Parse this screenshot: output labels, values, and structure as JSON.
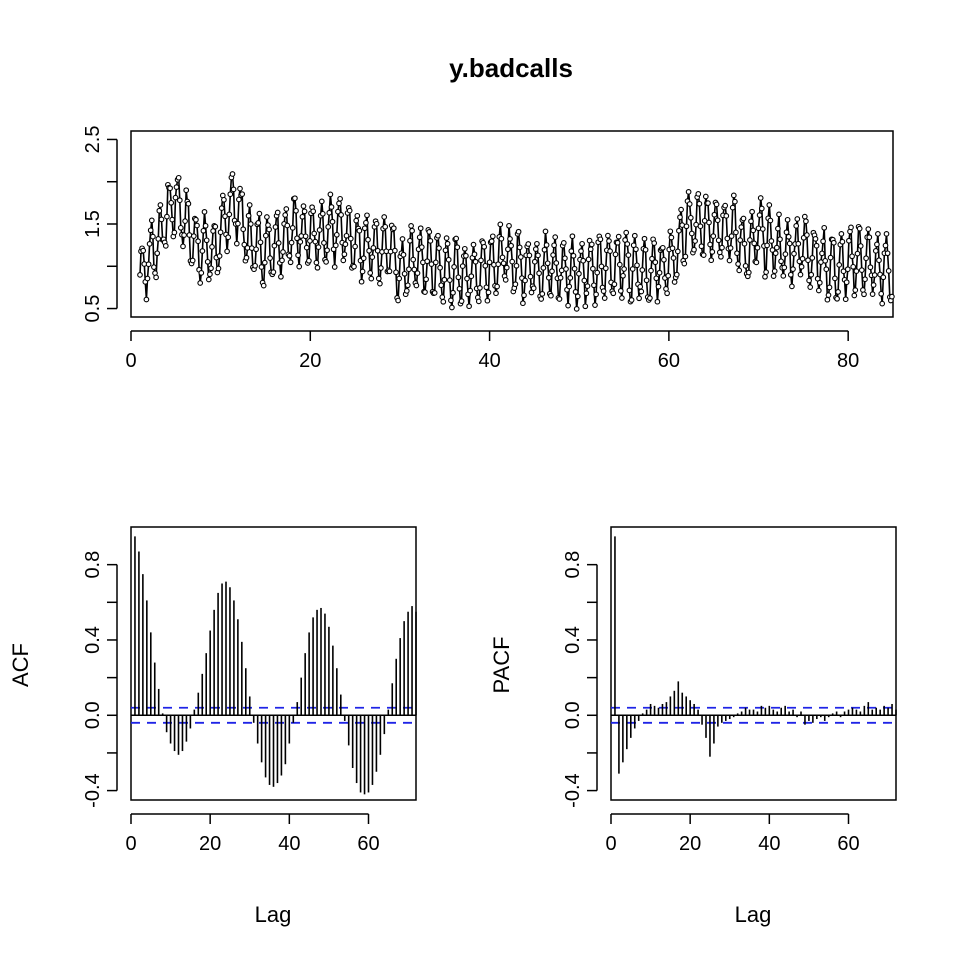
{
  "chart_data": [
    {
      "type": "line",
      "title": "y.badcalls",
      "xlabel": "",
      "ylabel": "",
      "xlim": [
        0,
        85
      ],
      "ylim": [
        0.4,
        2.6
      ],
      "x_ticks": [
        0,
        20,
        40,
        60,
        80
      ],
      "x_tick_labels": [
        "0",
        "20",
        "40",
        "60",
        "80"
      ],
      "y_ticks": [
        0.5,
        1.0,
        1.5,
        2.0,
        2.5
      ],
      "y_tick_labels": [
        "0.5",
        "",
        "1.5",
        "",
        "2.5"
      ],
      "markers": "open-circle",
      "level_profile": {
        "x": [
          1,
          3,
          4,
          5,
          7,
          9,
          10,
          11,
          12,
          13,
          15,
          17,
          19,
          21,
          23,
          25,
          27,
          29,
          30,
          32,
          35,
          38,
          40,
          42,
          44,
          46,
          48,
          50,
          52,
          54,
          56,
          58,
          60,
          61,
          62,
          63,
          65,
          67,
          68,
          69,
          70,
          71,
          73,
          75,
          77,
          79,
          81,
          83,
          85
        ],
        "y": [
          0.9,
          1.3,
          1.6,
          1.8,
          1.3,
          1.15,
          1.3,
          1.75,
          1.7,
          1.3,
          1.2,
          1.35,
          1.45,
          1.3,
          1.45,
          1.3,
          1.2,
          1.25,
          0.95,
          1.1,
          0.95,
          0.9,
          1.05,
          1.1,
          1.0,
          1.0,
          0.95,
          0.95,
          0.95,
          1.05,
          1.0,
          0.95,
          1.0,
          1.2,
          1.5,
          1.45,
          1.5,
          1.45,
          1.3,
          1.15,
          1.4,
          1.3,
          1.15,
          1.25,
          1.05,
          0.95,
          1.1,
          1.0,
          0.95
        ]
      },
      "amplitude": 0.35
    },
    {
      "type": "bar",
      "xlabel": "Lag",
      "ylabel": "ACF",
      "xlim": [
        0,
        72
      ],
      "ylim": [
        -0.45,
        1.0
      ],
      "x_ticks": [
        0,
        20,
        40,
        60
      ],
      "x_tick_labels": [
        "0",
        "20",
        "40",
        "60"
      ],
      "y_ticks": [
        -0.4,
        -0.2,
        0.0,
        0.2,
        0.4,
        0.6,
        0.8
      ],
      "y_tick_labels": [
        "-0.4",
        "",
        "0.0",
        "",
        "0.4",
        "",
        "0.8"
      ],
      "conf_limit": 0.04,
      "lags": [
        1,
        2,
        3,
        4,
        5,
        6,
        7,
        8,
        9,
        10,
        11,
        12,
        13,
        14,
        15,
        16,
        17,
        18,
        19,
        20,
        21,
        22,
        23,
        24,
        25,
        26,
        27,
        28,
        29,
        30,
        31,
        32,
        33,
        34,
        35,
        36,
        37,
        38,
        39,
        40,
        41,
        42,
        43,
        44,
        45,
        46,
        47,
        48,
        49,
        50,
        51,
        52,
        53,
        54,
        55,
        56,
        57,
        58,
        59,
        60,
        61,
        62,
        63,
        64,
        65,
        66,
        67,
        68,
        69,
        70,
        71,
        72
      ],
      "values": [
        0.95,
        0.87,
        0.75,
        0.61,
        0.44,
        0.28,
        0.14,
        0.01,
        -0.09,
        -0.15,
        -0.19,
        -0.21,
        -0.19,
        -0.14,
        -0.07,
        0.03,
        0.12,
        0.22,
        0.33,
        0.45,
        0.56,
        0.65,
        0.7,
        0.71,
        0.68,
        0.61,
        0.51,
        0.39,
        0.25,
        0.1,
        -0.04,
        -0.15,
        -0.25,
        -0.33,
        -0.37,
        -0.38,
        -0.36,
        -0.32,
        -0.26,
        -0.15,
        -0.04,
        0.07,
        0.2,
        0.33,
        0.44,
        0.52,
        0.56,
        0.57,
        0.54,
        0.47,
        0.37,
        0.25,
        0.11,
        -0.03,
        -0.16,
        -0.28,
        -0.36,
        -0.41,
        -0.42,
        -0.41,
        -0.37,
        -0.3,
        -0.21,
        -0.1,
        0.03,
        0.17,
        0.3,
        0.41,
        0.5,
        0.55,
        0.58,
        0.55
      ]
    },
    {
      "type": "bar",
      "xlabel": "Lag",
      "ylabel": "PACF",
      "xlim": [
        0,
        72
      ],
      "ylim": [
        -0.45,
        1.0
      ],
      "x_ticks": [
        0,
        20,
        40,
        60
      ],
      "x_tick_labels": [
        "0",
        "20",
        "40",
        "60"
      ],
      "y_ticks": [
        -0.4,
        -0.2,
        0.0,
        0.2,
        0.4,
        0.6,
        0.8
      ],
      "y_tick_labels": [
        "-0.4",
        "",
        "0.0",
        "",
        "0.4",
        "",
        "0.8"
      ],
      "conf_limit": 0.04,
      "lags": [
        1,
        2,
        3,
        4,
        5,
        6,
        7,
        8,
        9,
        10,
        11,
        12,
        13,
        14,
        15,
        16,
        17,
        18,
        19,
        20,
        21,
        22,
        23,
        24,
        25,
        26,
        27,
        28,
        29,
        30,
        31,
        32,
        33,
        34,
        35,
        36,
        37,
        38,
        39,
        40,
        41,
        42,
        43,
        44,
        45,
        46,
        47,
        48,
        49,
        50,
        51,
        52,
        53,
        54,
        55,
        56,
        57,
        58,
        59,
        60,
        61,
        62,
        63,
        64,
        65,
        66,
        67,
        68,
        69,
        70,
        71,
        72
      ],
      "values": [
        0.95,
        -0.31,
        -0.25,
        -0.18,
        -0.12,
        -0.07,
        -0.03,
        0.01,
        0.03,
        0.06,
        0.05,
        0.04,
        0.06,
        0.07,
        0.1,
        0.13,
        0.18,
        0.12,
        0.1,
        0.08,
        0.06,
        0.03,
        -0.05,
        -0.12,
        -0.22,
        -0.15,
        -0.06,
        -0.04,
        -0.03,
        -0.02,
        -0.01,
        0.01,
        0.02,
        0.04,
        0.03,
        0.03,
        0.02,
        0.05,
        0.04,
        0.05,
        0.03,
        0.02,
        0.04,
        0.05,
        0.02,
        0.03,
        -0.01,
        0.02,
        -0.05,
        -0.03,
        -0.04,
        -0.02,
        -0.01,
        -0.03,
        -0.01,
        0.01,
        0.02,
        -0.01,
        0.02,
        0.03,
        0.04,
        0.03,
        0.02,
        0.05,
        0.07,
        0.03,
        0.04,
        0.03,
        0.05,
        0.04,
        0.06,
        0.03
      ]
    }
  ]
}
